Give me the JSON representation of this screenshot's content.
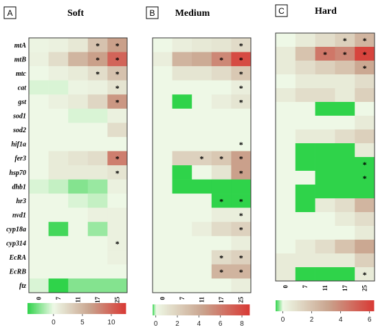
{
  "chart_data": [
    {
      "type": "heatmap",
      "panel_letter": "A",
      "title": "Soft",
      "row_labels": [
        "mtA",
        "mtB",
        "mtc",
        "cat",
        "gst",
        "sod1",
        "sod2",
        "hif1a",
        "fer3",
        "hsp70",
        "dhb1",
        "hr3",
        "nvd1",
        "cyp18a",
        "cyp314",
        "EcRA",
        "EcRB",
        "ftz"
      ],
      "col_labels": [
        "0",
        "7",
        "11",
        "17",
        "25"
      ],
      "values": [
        [
          0.3,
          0.5,
          1.2,
          4.0,
          6.5
        ],
        [
          0.5,
          2.0,
          5.0,
          6.5,
          10.0
        ],
        [
          0.0,
          0.5,
          1.0,
          2.0,
          4.0
        ],
        [
          -0.5,
          -0.5,
          0.3,
          0.5,
          1.5
        ],
        [
          0.0,
          0.5,
          1.0,
          2.5,
          7.0
        ],
        [
          0.0,
          0.0,
          -0.5,
          -0.5,
          0.5
        ],
        [
          0.0,
          0.0,
          0.0,
          0.0,
          2.0
        ],
        [
          0.0,
          0.0,
          0.0,
          0.0,
          0.0
        ],
        [
          0.0,
          1.0,
          1.5,
          2.0,
          8.5
        ],
        [
          0.0,
          1.0,
          1.0,
          1.0,
          1.5
        ],
        [
          -0.5,
          -1.0,
          -2.5,
          -2.0,
          0.5
        ],
        [
          0.0,
          0.0,
          -0.5,
          -1.0,
          0.0
        ],
        [
          0.0,
          0.0,
          0.0,
          0.5,
          0.5
        ],
        [
          0.0,
          -4.0,
          0.0,
          -2.0,
          0.5
        ],
        [
          0.0,
          0.0,
          0.0,
          0.0,
          0.5
        ],
        [
          0.0,
          0.0,
          0.0,
          0.0,
          0.5
        ],
        [
          0.0,
          0.0,
          0.0,
          0.0,
          0.0
        ],
        [
          -0.5,
          -4.5,
          -2.5,
          -2.5,
          -2.5
        ]
      ],
      "significant": [
        [
          0,
          3
        ],
        [
          0,
          4
        ],
        [
          1,
          3
        ],
        [
          1,
          4
        ],
        [
          2,
          3
        ],
        [
          2,
          4
        ],
        [
          3,
          4
        ],
        [
          4,
          4
        ],
        [
          8,
          4
        ],
        [
          9,
          4
        ],
        [
          14,
          4
        ]
      ],
      "colorbar": {
        "min": -4.5,
        "max": 12.5,
        "ticks": [
          0,
          5,
          10
        ]
      }
    },
    {
      "type": "heatmap",
      "panel_letter": "B",
      "title": "Medium",
      "row_labels": [
        "mtA",
        "mtB",
        "mtc",
        "cat",
        "gst",
        "sod1",
        "sod2",
        "hif1a",
        "fer3",
        "hsp70",
        "dhb1",
        "hr3",
        "nvd1",
        "cyp18a",
        "cyp314",
        "EcRA",
        "EcRB",
        "ftz"
      ],
      "col_labels": [
        "0",
        "7",
        "11",
        "17",
        "25"
      ],
      "values": [
        [
          0.0,
          0.5,
          0.8,
          1.0,
          1.5
        ],
        [
          0.5,
          3.5,
          4.0,
          5.5,
          8.0
        ],
        [
          0.0,
          1.0,
          1.0,
          1.5,
          2.5
        ],
        [
          0.0,
          0.0,
          0.0,
          0.0,
          0.5
        ],
        [
          0.0,
          -0.5,
          0.0,
          0.5,
          1.0
        ],
        [
          0.0,
          0.0,
          0.0,
          0.0,
          0.0
        ],
        [
          0.0,
          0.0,
          0.0,
          0.0,
          0.0
        ],
        [
          0.0,
          0.0,
          0.0,
          0.0,
          0.0
        ],
        [
          0.0,
          2.0,
          2.0,
          2.5,
          4.5
        ],
        [
          0.0,
          -0.5,
          0.0,
          1.0,
          4.5
        ],
        [
          0.0,
          -1.5,
          -2.0,
          -1.0,
          -0.5
        ],
        [
          0.0,
          0.0,
          0.0,
          -1.5,
          -1.5
        ],
        [
          0.0,
          0.0,
          0.0,
          0.5,
          0.5
        ],
        [
          0.0,
          0.0,
          0.5,
          1.5,
          2.0
        ],
        [
          0.0,
          0.0,
          0.0,
          0.0,
          0.5
        ],
        [
          0.0,
          0.0,
          0.0,
          1.5,
          2.0
        ],
        [
          0.0,
          0.0,
          0.0,
          3.5,
          3.5
        ],
        [
          0.0,
          0.0,
          0.0,
          0.0,
          0.5
        ]
      ],
      "significant": [
        [
          0,
          4
        ],
        [
          1,
          3
        ],
        [
          1,
          4
        ],
        [
          2,
          4
        ],
        [
          3,
          4
        ],
        [
          4,
          4
        ],
        [
          7,
          4
        ],
        [
          8,
          2
        ],
        [
          8,
          3
        ],
        [
          8,
          4
        ],
        [
          9,
          4
        ],
        [
          11,
          3
        ],
        [
          11,
          4
        ],
        [
          12,
          4
        ],
        [
          13,
          4
        ],
        [
          15,
          3
        ],
        [
          15,
          4
        ],
        [
          16,
          3
        ],
        [
          16,
          4
        ]
      ],
      "colorbar": {
        "min": -0.3,
        "max": 8.7,
        "ticks": [
          0,
          2,
          4,
          6,
          8
        ]
      }
    },
    {
      "type": "heatmap",
      "panel_letter": "C",
      "title": "Hard",
      "row_labels": [
        "mtA",
        "mtB",
        "mtc",
        "cat",
        "gst",
        "sod1",
        "sod2",
        "hif1a",
        "fer3",
        "hsp70",
        "dhb1",
        "hr3",
        "nvd1",
        "cyp18a",
        "cyp314",
        "EcRA",
        "EcRB",
        "ftz"
      ],
      "col_labels": [
        "0",
        "7",
        "11",
        "17",
        "25"
      ],
      "values": [
        [
          0.0,
          0.5,
          1.0,
          1.5,
          2.5
        ],
        [
          0.5,
          2.0,
          4.5,
          4.0,
          6.0
        ],
        [
          0.5,
          1.0,
          1.5,
          2.0,
          3.0
        ],
        [
          0.0,
          0.5,
          0.5,
          0.5,
          1.0
        ],
        [
          0.5,
          1.0,
          1.0,
          0.5,
          1.5
        ],
        [
          0.0,
          0.0,
          -0.5,
          -0.5,
          0.0
        ],
        [
          0.0,
          0.0,
          0.0,
          0.0,
          0.5
        ],
        [
          0.0,
          0.5,
          0.5,
          1.0,
          1.5
        ],
        [
          0.0,
          -0.5,
          -1.0,
          -0.5,
          0.5
        ],
        [
          0.0,
          -0.5,
          -2.0,
          -1.5,
          -0.5
        ],
        [
          0.0,
          0.0,
          -1.0,
          -2.0,
          -1.5
        ],
        [
          0.0,
          -1.0,
          -1.0,
          -1.0,
          -0.5
        ],
        [
          0.0,
          -0.5,
          0.5,
          1.0,
          2.5
        ],
        [
          0.0,
          0.0,
          0.0,
          0.5,
          1.0
        ],
        [
          0.0,
          0.0,
          0.0,
          0.0,
          0.5
        ],
        [
          0.0,
          0.5,
          1.0,
          2.0,
          3.0
        ],
        [
          0.5,
          0.5,
          0.5,
          0.5,
          1.5
        ],
        [
          0.5,
          -1.5,
          -2.5,
          -0.5,
          0.5
        ]
      ],
      "significant": [
        [
          0,
          3
        ],
        [
          0,
          4
        ],
        [
          1,
          2
        ],
        [
          1,
          3
        ],
        [
          1,
          4
        ],
        [
          2,
          4
        ],
        [
          9,
          4
        ],
        [
          10,
          4
        ],
        [
          17,
          4
        ]
      ],
      "colorbar": {
        "min": -0.5,
        "max": 6.3,
        "ticks": [
          0,
          2,
          4,
          6
        ]
      }
    }
  ],
  "significance_marker": "*",
  "colors": {
    "low": "#2fd34a",
    "mid": "#eef8e6",
    "high": "#d83a35",
    "tan": "#c9a48e"
  }
}
